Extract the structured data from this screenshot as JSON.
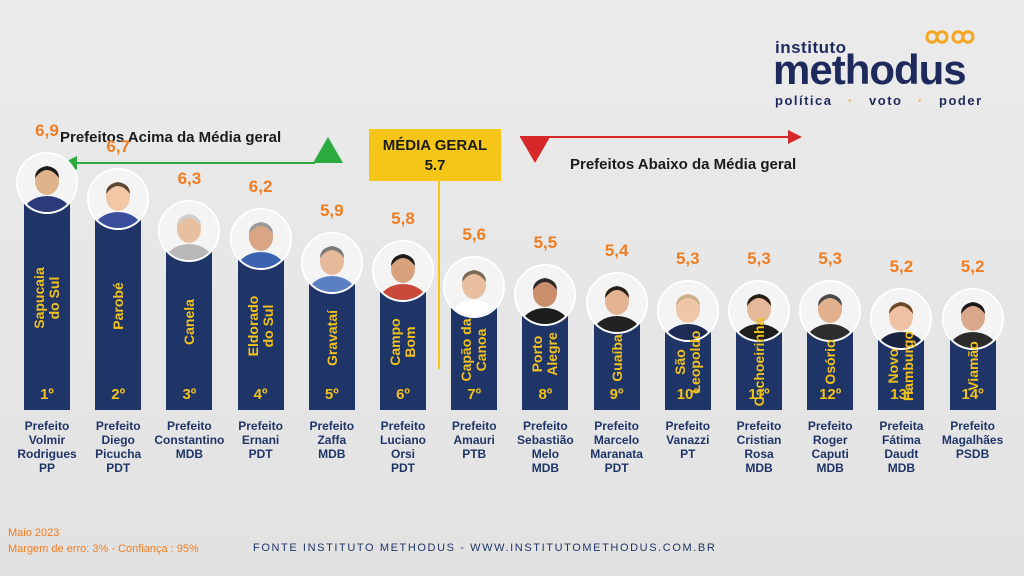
{
  "brand": {
    "line1": "instituto",
    "line2": "methodus",
    "tag_1": "política",
    "tag_2": "voto",
    "tag_3": "poder",
    "color": "#1f2a5c",
    "accent": "#f5a623"
  },
  "labels": {
    "above": "Prefeitos Acima da Média geral",
    "below": "Prefeitos Abaixo da Média geral",
    "avg_title": "MÉDIA GERAL",
    "avg_value": "5.7"
  },
  "footer": {
    "date": "Maio 2023",
    "margin": "Margem de erro: 3% - Confiança : 95%",
    "source": "FONTE INSTITUTO METHODUS - WWW.INSTITUTOMETHODUS.COM.BR"
  },
  "colors": {
    "bar": "#1f3568",
    "value": "#f07d22",
    "city": "#f2c21b",
    "avg_box": "#f5c518",
    "arrow_up": "#2daa3f",
    "arrow_down": "#d62828"
  },
  "chart_data": {
    "type": "bar",
    "title": "MÉDIA GERAL",
    "reference_line": 5.7,
    "categories": [
      "Sapucaia do Sul",
      "Parobé",
      "Canela",
      "Eldorado do Sul",
      "Gravataí",
      "Campo Bom",
      "Capão da Canoa",
      "Porto Alegre",
      "Guaíba",
      "São Leopoldo",
      "Cachoeirinha",
      "Osório",
      "Novo Hamburgo",
      "Viamão"
    ],
    "values": [
      6.9,
      6.7,
      6.3,
      6.2,
      5.9,
      5.8,
      5.6,
      5.5,
      5.4,
      5.3,
      5.3,
      5.3,
      5.2,
      5.2
    ],
    "value_labels": [
      "6,9",
      "6,7",
      "6,3",
      "6,2",
      "5,9",
      "5,8",
      "5,6",
      "5,5",
      "5,4",
      "5,3",
      "5,3",
      "5,3",
      "5,2",
      "5,2"
    ],
    "city_labels": [
      "Sapucaia\ndo Sul",
      "Parobé",
      "Canela",
      "Eldorado\ndo Sul",
      "Gravataí",
      "Campo\nBom",
      "Capão da\nCanoa",
      "Porto\nAlegre",
      "Guaíba",
      "São\nLeopoldo",
      "Cachoeirinha",
      "Osório",
      "Novo\nHamburgo",
      "Viamão"
    ],
    "ranks": [
      "1º",
      "2º",
      "3º",
      "4º",
      "5º",
      "6º",
      "7º",
      "8º",
      "9º",
      "10º",
      "11º",
      "12º",
      "13º",
      "14º"
    ],
    "mayors": [
      "Prefeito\nVolmir\nRodrigues\nPP",
      "Prefeito\nDiego\nPicucha\nPDT",
      "Prefeito\nConstantino\nMDB",
      "Prefeito\nErnani\nPDT",
      "Prefeito\nZaffa\nMDB",
      "Prefeito\nLuciano\nOrsi\nPDT",
      "Prefeito\nAmauri\nPTB",
      "Prefeito\nSebastião\nMelo\nMDB",
      "Prefeito\nMarcelo\nMaranata\nPDT",
      "Prefeito\nVanazzi\nPT",
      "Prefeito\nCristian\nRosa\nMDB",
      "Prefeito\nRoger\nCaputi\nMDB",
      "Prefeita\nFátima\nDaudt\nMDB",
      "Prefeito\nMagalhães\nPSDB"
    ],
    "ylim": [
      5.0,
      7.0
    ]
  }
}
